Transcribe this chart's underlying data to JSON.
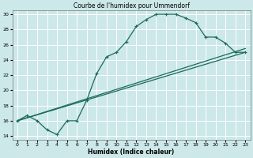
{
  "title": "Courbe de l'humidex pour Ummendorf",
  "xlabel": "Humidex (Indice chaleur)",
  "xlim": [
    -0.5,
    23.5
  ],
  "ylim": [
    13.5,
    30.5
  ],
  "xticks": [
    0,
    1,
    2,
    3,
    4,
    5,
    6,
    7,
    8,
    9,
    10,
    11,
    12,
    13,
    14,
    15,
    16,
    17,
    18,
    19,
    20,
    21,
    22,
    23
  ],
  "yticks": [
    14,
    16,
    18,
    20,
    22,
    24,
    26,
    28,
    30
  ],
  "bg_color": "#cce8e8",
  "line_color": "#1a6b5a",
  "grid_color": "#ffffff",
  "line1_x": [
    0,
    1,
    2,
    3,
    4,
    5,
    6,
    7,
    8,
    9,
    10,
    11,
    12,
    13,
    14,
    15,
    16,
    17,
    18,
    19,
    20,
    21,
    22,
    23
  ],
  "line1_y": [
    16.0,
    16.7,
    16.0,
    14.8,
    14.2,
    16.0,
    16.0,
    18.7,
    22.2,
    24.4,
    25.0,
    26.4,
    28.4,
    29.3,
    30.0,
    30.0,
    30.0,
    29.5,
    28.9,
    27.0,
    27.0,
    26.2,
    25.0,
    25.0
  ],
  "line2_x": [
    0,
    23
  ],
  "line2_y": [
    16.0,
    25.0
  ],
  "line3_x": [
    0,
    23
  ],
  "line3_y": [
    16.0,
    25.5
  ]
}
